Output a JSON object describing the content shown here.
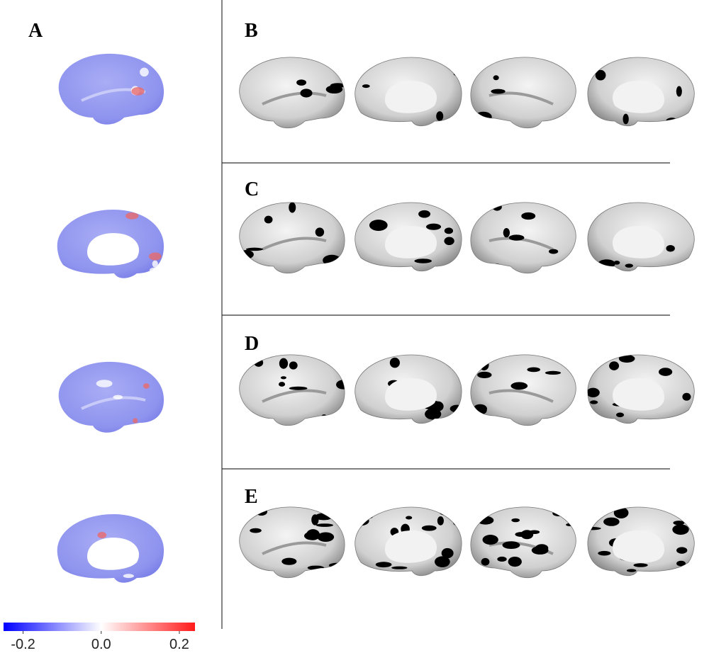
{
  "panel_labels": [
    "A",
    "B",
    "C",
    "D",
    "E"
  ],
  "colorbar": {
    "lim": [
      -0.25,
      0.24
    ],
    "ticks": [
      -0.2,
      {
        "value": 0,
        "label": "0.0"
      },
      0.2
    ],
    "colors": [
      "#0000ff",
      "#ffffff",
      "#ff1a1a"
    ]
  }
}
